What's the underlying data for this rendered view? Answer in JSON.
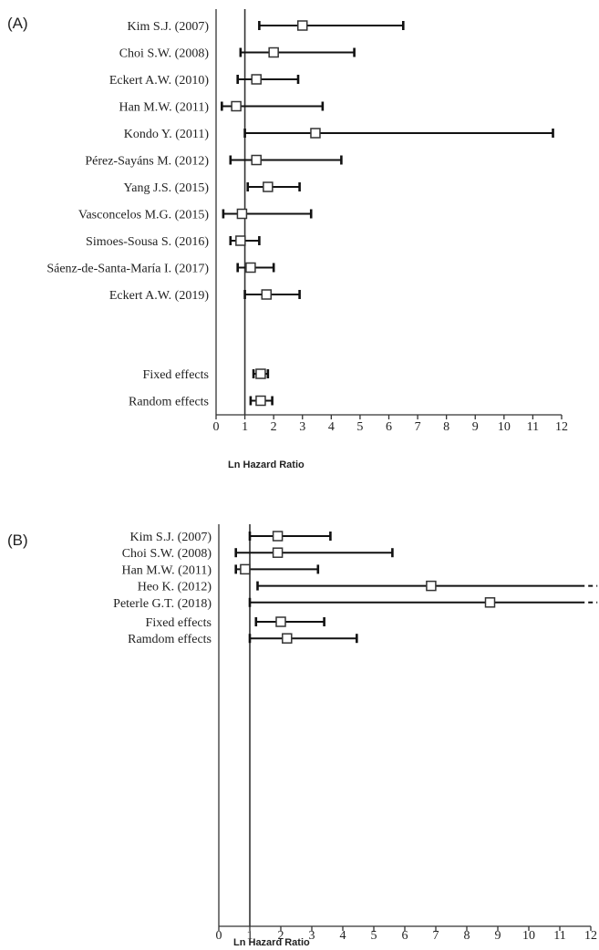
{
  "chart_data": [
    {
      "type": "forest",
      "panel_label": "(A)",
      "xlabel": "Ln Hazard Ratio",
      "xlim": [
        0,
        12
      ],
      "x_ticks": [
        "0",
        "1",
        "2",
        "3",
        "4",
        "5",
        "6",
        "7",
        "8",
        "9",
        "10",
        "11",
        "12"
      ],
      "reference_line": 1,
      "studies": [
        {
          "label": "Kim S.J. (2007)",
          "estimate": 3.0,
          "lower": 1.5,
          "upper": 6.5
        },
        {
          "label": "Choi S.W. (2008)",
          "estimate": 2.0,
          "lower": 0.85,
          "upper": 4.8
        },
        {
          "label": "Eckert A.W. (2010)",
          "estimate": 1.4,
          "lower": 0.75,
          "upper": 2.85
        },
        {
          "label": "Han M.W. (2011)",
          "estimate": 0.7,
          "lower": 0.2,
          "upper": 3.7
        },
        {
          "label": "Kondo Y. (2011)",
          "estimate": 3.45,
          "lower": 1.0,
          "upper": 11.7
        },
        {
          "label": "Pérez-Sayáns M. (2012)",
          "estimate": 1.4,
          "lower": 0.5,
          "upper": 4.35
        },
        {
          "label": "Yang J.S. (2015)",
          "estimate": 1.8,
          "lower": 1.1,
          "upper": 2.9
        },
        {
          "label": "Vasconcelos M.G. (2015)",
          "estimate": 0.9,
          "lower": 0.25,
          "upper": 3.3
        },
        {
          "label": "Simoes-Sousa S. (2016)",
          "estimate": 0.85,
          "lower": 0.5,
          "upper": 1.5
        },
        {
          "label": "Sáenz-de-Santa-María I. (2017)",
          "estimate": 1.2,
          "lower": 0.75,
          "upper": 2.0
        },
        {
          "label": "Eckert A.W. (2019)",
          "estimate": 1.75,
          "lower": 1.0,
          "upper": 2.9
        }
      ],
      "pooled": [
        {
          "label": "Fixed effects",
          "estimate": 1.55,
          "lower": 1.3,
          "upper": 1.8
        },
        {
          "label": "Random effects",
          "estimate": 1.55,
          "lower": 1.2,
          "upper": 1.95
        }
      ]
    },
    {
      "type": "forest",
      "panel_label": "(B)",
      "xlabel": "Ln Hazard Ratio",
      "xlim": [
        0,
        12
      ],
      "x_ticks": [
        "0",
        "1",
        "2",
        "3",
        "4",
        "5",
        "6",
        "7",
        "8",
        "9",
        "10",
        "11",
        "12"
      ],
      "reference_line": 1,
      "studies": [
        {
          "label": "Kim S.J. (2007)",
          "estimate": 1.9,
          "lower": 1.0,
          "upper": 3.6
        },
        {
          "label": "Choi S.W. (2008)",
          "estimate": 1.9,
          "lower": 0.55,
          "upper": 5.6
        },
        {
          "label": "Han M.W. (2011)",
          "estimate": 0.85,
          "lower": 0.55,
          "upper": 3.2
        },
        {
          "label": "Heo K. (2012)",
          "estimate": 6.85,
          "lower": 1.25,
          "upper": 11.8,
          "truncated": true
        },
        {
          "label": "Peterle G.T. (2018)",
          "estimate": 8.75,
          "lower": 1.0,
          "upper": 11.8,
          "truncated": true
        }
      ],
      "pooled": [
        {
          "label": "Fixed effects",
          "estimate": 2.0,
          "lower": 1.2,
          "upper": 3.4
        },
        {
          "label": "Ramdom effects",
          "estimate": 2.2,
          "lower": 1.0,
          "upper": 4.45
        }
      ]
    }
  ]
}
